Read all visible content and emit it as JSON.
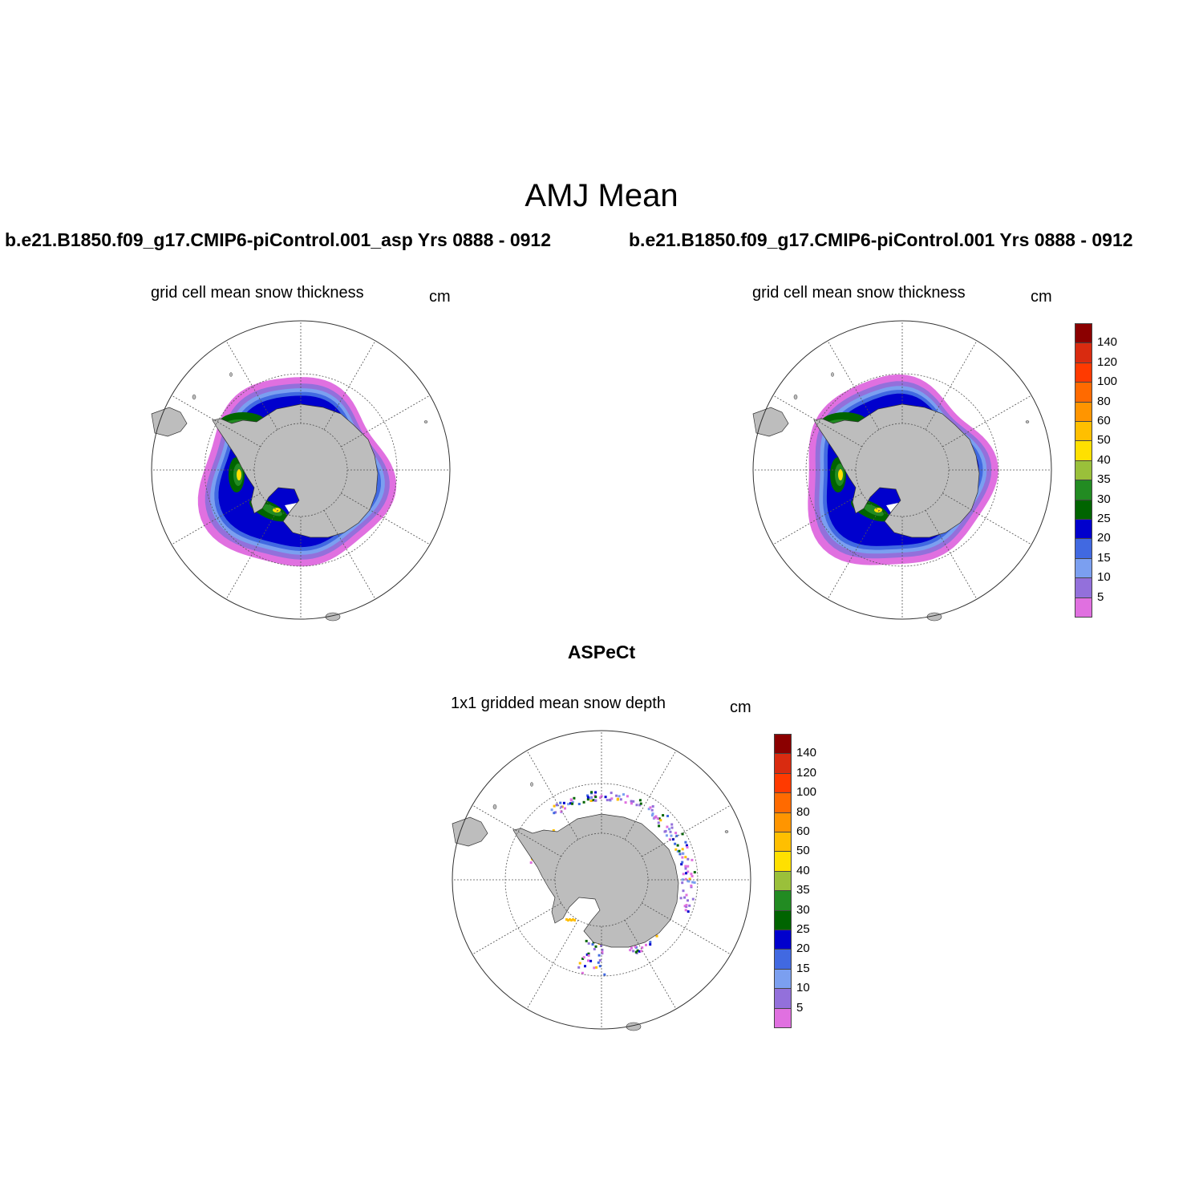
{
  "main_title": "AMJ Mean",
  "panels": [
    {
      "case_title": "b.e21.B1850.f09_g17.CMIP6-piControl.001_asp  Yrs 0888 - 0912",
      "subtitle": "grid cell mean snow thickness",
      "units": "cm"
    },
    {
      "case_title": "b.e21.B1850.f09_g17.CMIP6-piControl.001  Yrs 0888 - 0912",
      "subtitle": "grid cell mean snow thickness",
      "units": "cm"
    },
    {
      "case_title": "ASPeCt",
      "subtitle": "1x1 gridded mean snow depth",
      "units": "cm"
    }
  ],
  "colorbar": {
    "levels": [
      "140",
      "120",
      "100",
      "80",
      "60",
      "50",
      "40",
      "35",
      "30",
      "25",
      "20",
      "15",
      "10",
      "5"
    ],
    "colors": [
      "#8b0000",
      "#d92b10",
      "#ff3a00",
      "#ff6a00",
      "#ff9500",
      "#ffbf00",
      "#ffe000",
      "#9ac03a",
      "#228b22",
      "#006400",
      "#0000cd",
      "#4169e1",
      "#7b9ff0",
      "#9370db",
      "#e070e0"
    ]
  },
  "map_colors": {
    "land": "#bdbdbd",
    "ocean": "#ffffff"
  }
}
